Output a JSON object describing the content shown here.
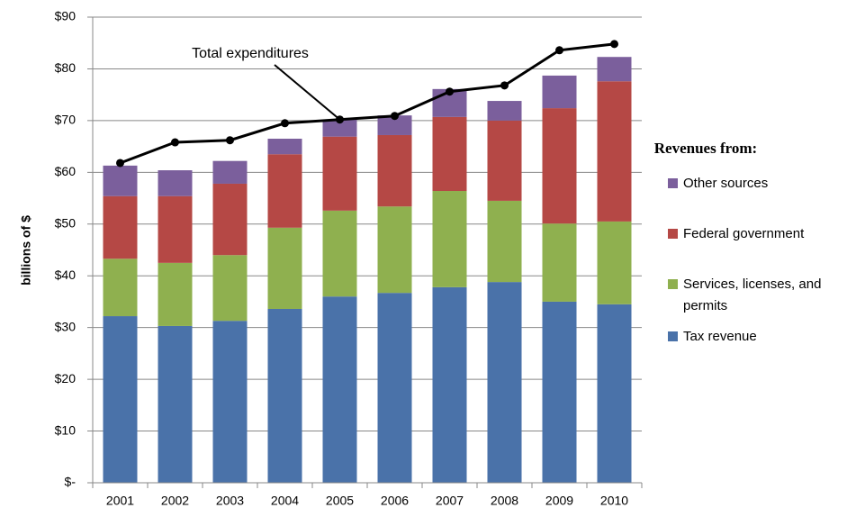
{
  "chart_data": {
    "type": "bar",
    "stacked": true,
    "ylabel": "billions of $",
    "legend_title": "Revenues from:",
    "categories": [
      "2001",
      "2002",
      "2003",
      "2004",
      "2005",
      "2006",
      "2007",
      "2008",
      "2009",
      "2010"
    ],
    "series": [
      {
        "name": "Tax revenue",
        "color": "#4a72a9",
        "values": [
          32.2,
          30.3,
          31.3,
          33.6,
          36.0,
          36.7,
          37.8,
          38.8,
          35.0,
          34.5
        ]
      },
      {
        "name": "Services, licenses, and permits",
        "color": "#8fb04f",
        "values": [
          11.1,
          12.2,
          12.7,
          15.7,
          16.6,
          16.7,
          18.6,
          15.7,
          15.1,
          16.0
        ]
      },
      {
        "name": "Federal government",
        "color": "#b54845",
        "values": [
          12.1,
          12.9,
          13.8,
          14.2,
          14.3,
          13.8,
          14.3,
          15.5,
          22.3,
          27.1
        ]
      },
      {
        "name": "Other sources",
        "color": "#7b5f9c",
        "values": [
          5.9,
          5.0,
          4.4,
          3.0,
          3.3,
          3.8,
          5.4,
          3.8,
          6.3,
          4.7
        ]
      },
      {
        "name": "Total expenditures",
        "type": "line",
        "color": "#000000",
        "values": [
          61.8,
          65.8,
          66.2,
          69.5,
          70.2,
          70.9,
          75.6,
          76.8,
          83.6,
          84.8
        ]
      }
    ],
    "ylim": [
      0,
      90
    ],
    "yticks": [
      {
        "value": 0,
        "label": "$-"
      },
      {
        "value": 10,
        "label": "$10"
      },
      {
        "value": 20,
        "label": "$20"
      },
      {
        "value": 30,
        "label": "$30"
      },
      {
        "value": 40,
        "label": "$40"
      },
      {
        "value": 50,
        "label": "$50"
      },
      {
        "value": 60,
        "label": "$60"
      },
      {
        "value": 70,
        "label": "$70"
      },
      {
        "value": 80,
        "label": "$80"
      },
      {
        "value": 90,
        "label": "$90"
      }
    ],
    "grid": true
  }
}
